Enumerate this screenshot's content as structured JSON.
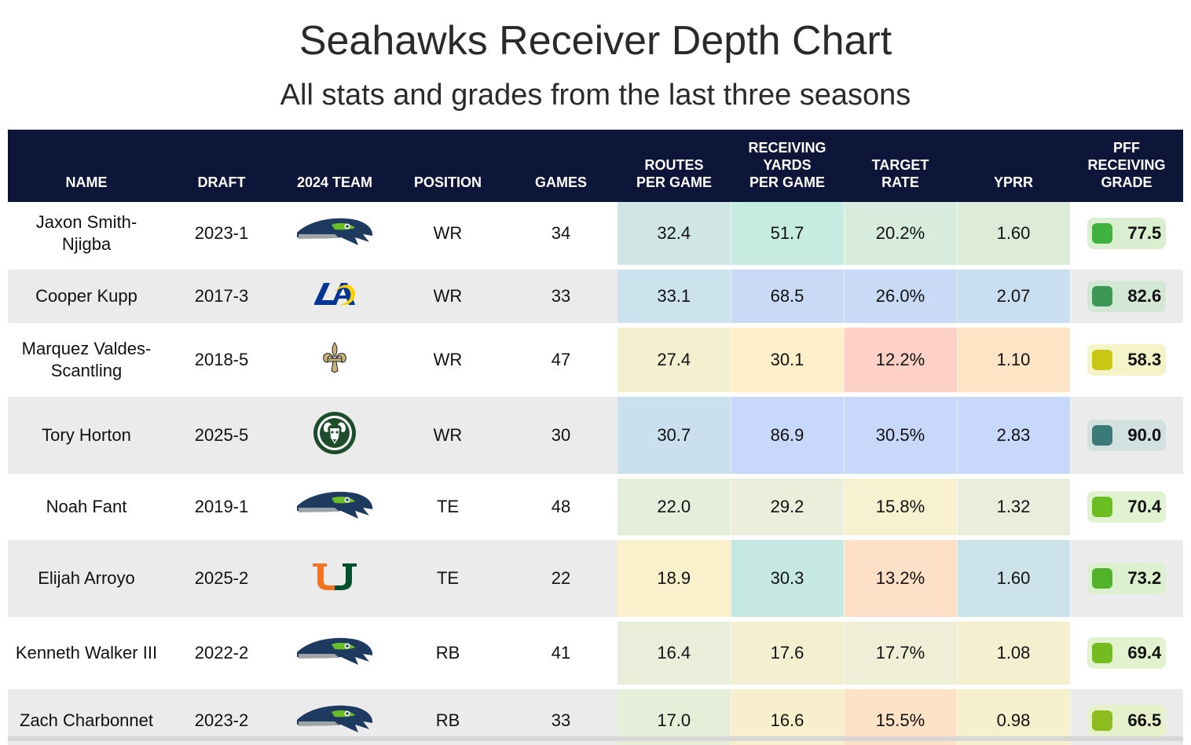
{
  "header": {
    "title": "Seahawks Receiver Depth Chart",
    "subtitle": "All stats and grades from the last three seasons"
  },
  "columns": {
    "name": [
      "NAME"
    ],
    "draft": [
      "DRAFT"
    ],
    "team": [
      "2024 TEAM"
    ],
    "position": [
      "POSITION"
    ],
    "games": [
      "GAMES"
    ],
    "routes": [
      "ROUTES",
      "PER GAME"
    ],
    "yards": [
      "RECEIVING",
      "YARDS",
      "PER GAME"
    ],
    "target": [
      "TARGET",
      "RATE"
    ],
    "yprr": [
      "YPRR"
    ],
    "grade": [
      "PFF",
      "RECEIVING",
      "GRADE"
    ]
  },
  "chart_data": {
    "type": "table",
    "title": "Seahawks Receiver Depth Chart",
    "subtitle": "All stats and grades from the last three seasons",
    "rows": [
      {
        "name": "Jaxon Smith-Njigba",
        "draft": "2023-1",
        "team_icon": "seahawks-logo",
        "position": "WR",
        "games": "34",
        "routes": "32.4",
        "yards": "51.7",
        "target": "20.2%",
        "yprr": "1.60",
        "grade": "77.5",
        "colors": {
          "routes": "#cfe6e5",
          "yards": "#c6ece1",
          "target": "#d7ecdc",
          "yprr": "#dcecd8",
          "grade_bg": "#d9efcf",
          "grade_swatch": "#3fb13e"
        }
      },
      {
        "name": "Cooper Kupp",
        "draft": "2017-3",
        "team_icon": "rams-logo",
        "position": "WR",
        "games": "33",
        "routes": "33.1",
        "yards": "68.5",
        "target": "26.0%",
        "yprr": "2.07",
        "grade": "82.6",
        "colors": {
          "routes": "#cce2ec",
          "yards": "#c9daf6",
          "target": "#c9daf6",
          "yprr": "#c9dff1",
          "grade_bg": "#d3e8d4",
          "grade_swatch": "#3d9857"
        }
      },
      {
        "name": "Marquez Valdes-Scantling",
        "draft": "2018-5",
        "team_icon": "saints-logo",
        "position": "WR",
        "games": "47",
        "routes": "27.4",
        "yards": "30.1",
        "target": "12.2%",
        "yprr": "1.10",
        "grade": "58.3",
        "colors": {
          "routes": "#f3f0d0",
          "yards": "#fdefc9",
          "target": "#fdd1c6",
          "yprr": "#fde4c4",
          "grade_bg": "#f4f4c8",
          "grade_swatch": "#c9c614"
        }
      },
      {
        "name": "Tory Horton",
        "draft": "2025-5",
        "team_icon": "colorado-state-logo",
        "position": "WR",
        "games": "30",
        "routes": "30.7",
        "yards": "86.9",
        "target": "30.5%",
        "yprr": "2.83",
        "grade": "90.0",
        "colors": {
          "routes": "#cbe0ef",
          "yards": "#c7d8fa",
          "target": "#c7d8fa",
          "yprr": "#c7d8fa",
          "grade_bg": "#d2e0e0",
          "grade_swatch": "#3c7a78"
        }
      },
      {
        "name": "Noah Fant",
        "draft": "2019-1",
        "team_icon": "seahawks-logo",
        "position": "TE",
        "games": "48",
        "routes": "22.0",
        "yards": "29.2",
        "target": "15.8%",
        "yprr": "1.32",
        "grade": "70.4",
        "colors": {
          "routes": "#e5eddb",
          "yards": "#eaeedb",
          "target": "#f7f1d0",
          "yprr": "#e8eedb",
          "grade_bg": "#e0f2cf",
          "grade_swatch": "#6bbd22"
        }
      },
      {
        "name": "Elijah Arroyo",
        "draft": "2025-2",
        "team_icon": "miami-logo",
        "position": "TE",
        "games": "22",
        "routes": "18.9",
        "yards": "30.3",
        "target": "13.2%",
        "yprr": "1.60",
        "grade": "73.2",
        "colors": {
          "routes": "#faf0cb",
          "yards": "#c5e9e2",
          "target": "#fde0c5",
          "yprr": "#cde3ea",
          "grade_bg": "#dcefcf",
          "grade_swatch": "#52b32b"
        }
      },
      {
        "name": "Kenneth Walker III",
        "draft": "2022-2",
        "team_icon": "seahawks-logo",
        "position": "RB",
        "games": "41",
        "routes": "16.4",
        "yards": "17.6",
        "target": "17.7%",
        "yprr": "1.08",
        "grade": "69.4",
        "colors": {
          "routes": "#e9eeda",
          "yards": "#f3f0d2",
          "target": "#eeefd6",
          "yprr": "#f5efd0",
          "grade_bg": "#e2f2cf",
          "grade_swatch": "#73bb1f"
        }
      },
      {
        "name": "Zach Charbonnet",
        "draft": "2023-2",
        "team_icon": "seahawks-logo",
        "position": "RB",
        "games": "33",
        "routes": "17.0",
        "yards": "16.6",
        "target": "15.5%",
        "yprr": "0.98",
        "grade": "66.5",
        "colors": {
          "routes": "#e6eed9",
          "yards": "#f8f0cd",
          "target": "#fde2c6",
          "yprr": "#f7f0cd",
          "grade_bg": "#e6f1cc",
          "grade_swatch": "#8cbc1d"
        }
      }
    ]
  }
}
